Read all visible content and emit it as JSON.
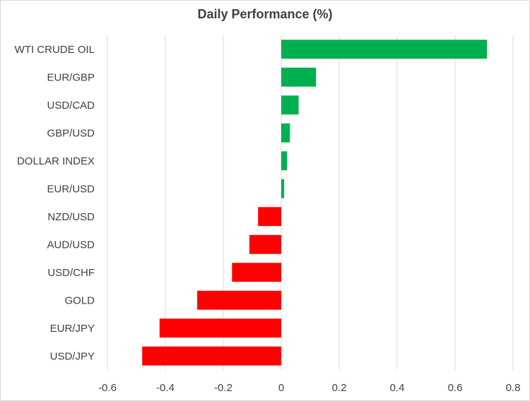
{
  "chart_data": {
    "type": "bar",
    "orientation": "horizontal",
    "title": "Daily Performance (%)",
    "xlabel": "",
    "ylabel": "",
    "categories": [
      "WTI CRUDE OIL",
      "EUR/GBP",
      "USD/CAD",
      "GBP/USD",
      "DOLLAR INDEX",
      "EUR/USD",
      "NZD/USD",
      "AUD/USD",
      "USD/CHF",
      "GOLD",
      "EUR/JPY",
      "USD/JPY"
    ],
    "values": [
      0.71,
      0.12,
      0.06,
      0.03,
      0.02,
      0.01,
      -0.08,
      -0.11,
      -0.17,
      -0.29,
      -0.42,
      -0.48
    ],
    "xlim": [
      -0.6,
      0.8
    ],
    "xticks": [
      -0.6,
      -0.4,
      -0.2,
      0,
      0.2,
      0.4,
      0.6,
      0.8
    ],
    "xtick_labels": [
      "-0.6",
      "-0.4",
      "-0.2",
      "0",
      "0.2",
      "0.4",
      "0.6",
      "0.8"
    ],
    "grid": "vertical",
    "colors": {
      "positive": "#00b050",
      "negative": "#ff0000",
      "grid": "#d9d9d9",
      "text": "#404040"
    }
  }
}
